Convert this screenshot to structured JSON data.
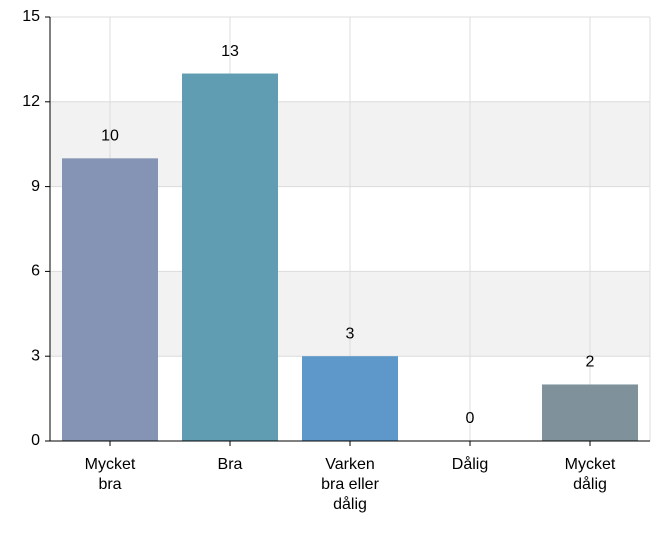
{
  "chart_data": {
    "type": "bar",
    "categories": [
      "Mycket bra",
      "Bra",
      "Varken bra eller dålig",
      "Dålig",
      "Mycket dålig"
    ],
    "values": [
      10,
      13,
      3,
      0,
      2
    ],
    "colors": [
      "#8594b5",
      "#609db3",
      "#5e98cb",
      "#5e98cb",
      "#7f929b"
    ],
    "ylim": [
      0,
      15
    ],
    "yticks": [
      0,
      3,
      6,
      9,
      12,
      15
    ],
    "grid": true
  }
}
